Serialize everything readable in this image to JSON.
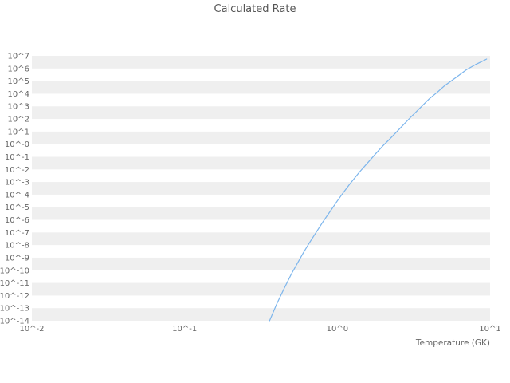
{
  "title": "Calculated Rate",
  "chart_data": {
    "type": "line",
    "title": "Calculated Rate",
    "xlabel": "Temperature (GK)",
    "ylabel": "",
    "x_scale": "log",
    "y_scale": "log",
    "xlog_range": [
      -2,
      1
    ],
    "ylog_range": [
      -14,
      7
    ],
    "x_tick_labels": [
      "10^-2",
      "10^-1",
      "10^0",
      "10^1"
    ],
    "x_tick_log10": [
      -2,
      -1,
      0,
      1
    ],
    "y_tick_labels": [
      "10^7",
      "10^6",
      "10^5",
      "10^4",
      "10^3",
      "10^2",
      "10^1",
      "10^-0",
      "10^-1",
      "10^-2",
      "10^-3",
      "10^-4",
      "10^-5",
      "10^-6",
      "10^-7",
      "10^-8",
      "10^-9",
      "10^-10",
      "10^-11",
      "10^-12",
      "10^-13",
      "10^-14"
    ],
    "y_tick_log10": [
      7,
      6,
      5,
      4,
      3,
      2,
      1,
      0,
      -1,
      -2,
      -3,
      -4,
      -5,
      -6,
      -7,
      -8,
      -9,
      -10,
      -11,
      -12,
      -13,
      -14
    ],
    "grid_bands": true,
    "band_color": "#efefef",
    "legend_position": "none",
    "series": [
      {
        "name": "Calculated Rate",
        "color": "#7cb5ec",
        "points_T_GK_vs_log10_rate": [
          [
            0.36,
            -14.0
          ],
          [
            0.4,
            -12.7
          ],
          [
            0.45,
            -11.4
          ],
          [
            0.5,
            -10.3
          ],
          [
            0.55,
            -9.4
          ],
          [
            0.6,
            -8.6
          ],
          [
            0.65,
            -7.9
          ],
          [
            0.7,
            -7.3
          ],
          [
            0.8,
            -6.2
          ],
          [
            0.9,
            -5.3
          ],
          [
            1.0,
            -4.5
          ],
          [
            1.1,
            -3.8
          ],
          [
            1.2,
            -3.2
          ],
          [
            1.4,
            -2.2
          ],
          [
            1.6,
            -1.4
          ],
          [
            1.8,
            -0.7
          ],
          [
            2.0,
            -0.1
          ],
          [
            2.2,
            0.4
          ],
          [
            2.5,
            1.1
          ],
          [
            3.0,
            2.1
          ],
          [
            3.5,
            2.9
          ],
          [
            4.0,
            3.6
          ],
          [
            4.5,
            4.1
          ],
          [
            5.0,
            4.6
          ],
          [
            6.0,
            5.3
          ],
          [
            7.0,
            5.9
          ],
          [
            8.0,
            6.3
          ],
          [
            9.0,
            6.6
          ],
          [
            9.5,
            6.75
          ]
        ]
      }
    ]
  }
}
